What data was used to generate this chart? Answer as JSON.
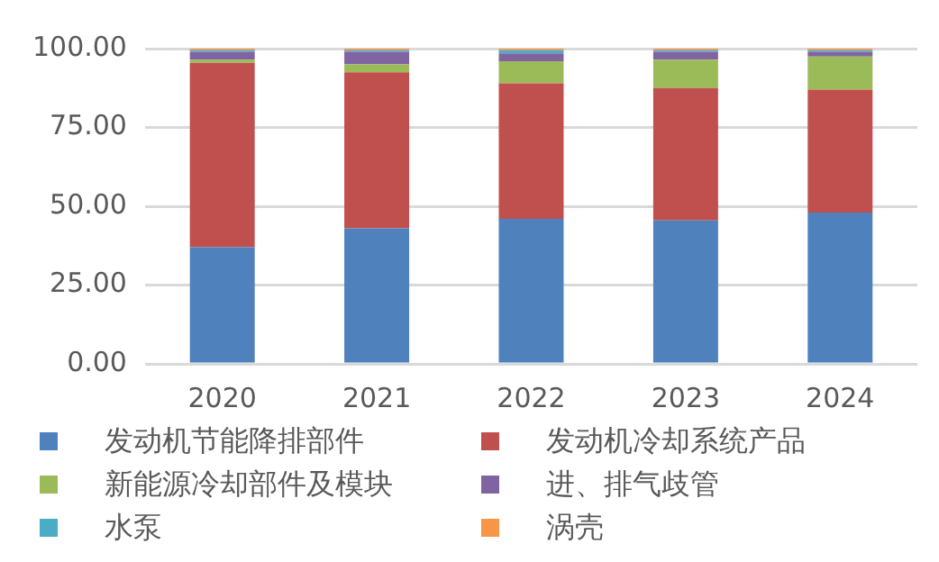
{
  "chart_data": {
    "type": "bar",
    "stacked": true,
    "categories": [
      "2020",
      "2021",
      "2022",
      "2023",
      "2024"
    ],
    "series": [
      {
        "name": "发动机节能降排部件",
        "color": "#4f81bd",
        "values": [
          37,
          43,
          46,
          45.5,
          48
        ]
      },
      {
        "name": "发动机冷却系统产品",
        "color": "#c0504d",
        "values": [
          58.5,
          49.5,
          43,
          42,
          39
        ]
      },
      {
        "name": "新能源冷却部件及模块",
        "color": "#9bbb59",
        "values": [
          1,
          2.5,
          7,
          9,
          10.5
        ]
      },
      {
        "name": "进、排气歧管",
        "color": "#8064a2",
        "values": [
          2.5,
          4,
          2.5,
          2.5,
          1.5
        ]
      },
      {
        "name": "水泵",
        "color": "#4bacc6",
        "values": [
          0.5,
          0.5,
          1,
          0.5,
          0.5
        ]
      },
      {
        "name": "涡壳",
        "color": "#f79646",
        "values": [
          0.5,
          0.5,
          0.5,
          0.5,
          0.5
        ]
      }
    ],
    "ylim": [
      0,
      100
    ],
    "yticks": [
      {
        "value": 0,
        "label": "0.00"
      },
      {
        "value": 25,
        "label": "25.00"
      },
      {
        "value": 50,
        "label": "50.00"
      },
      {
        "value": 75,
        "label": "75.00"
      },
      {
        "value": 100,
        "label": "100.00"
      }
    ],
    "grid": "y",
    "legend": "bottom"
  }
}
